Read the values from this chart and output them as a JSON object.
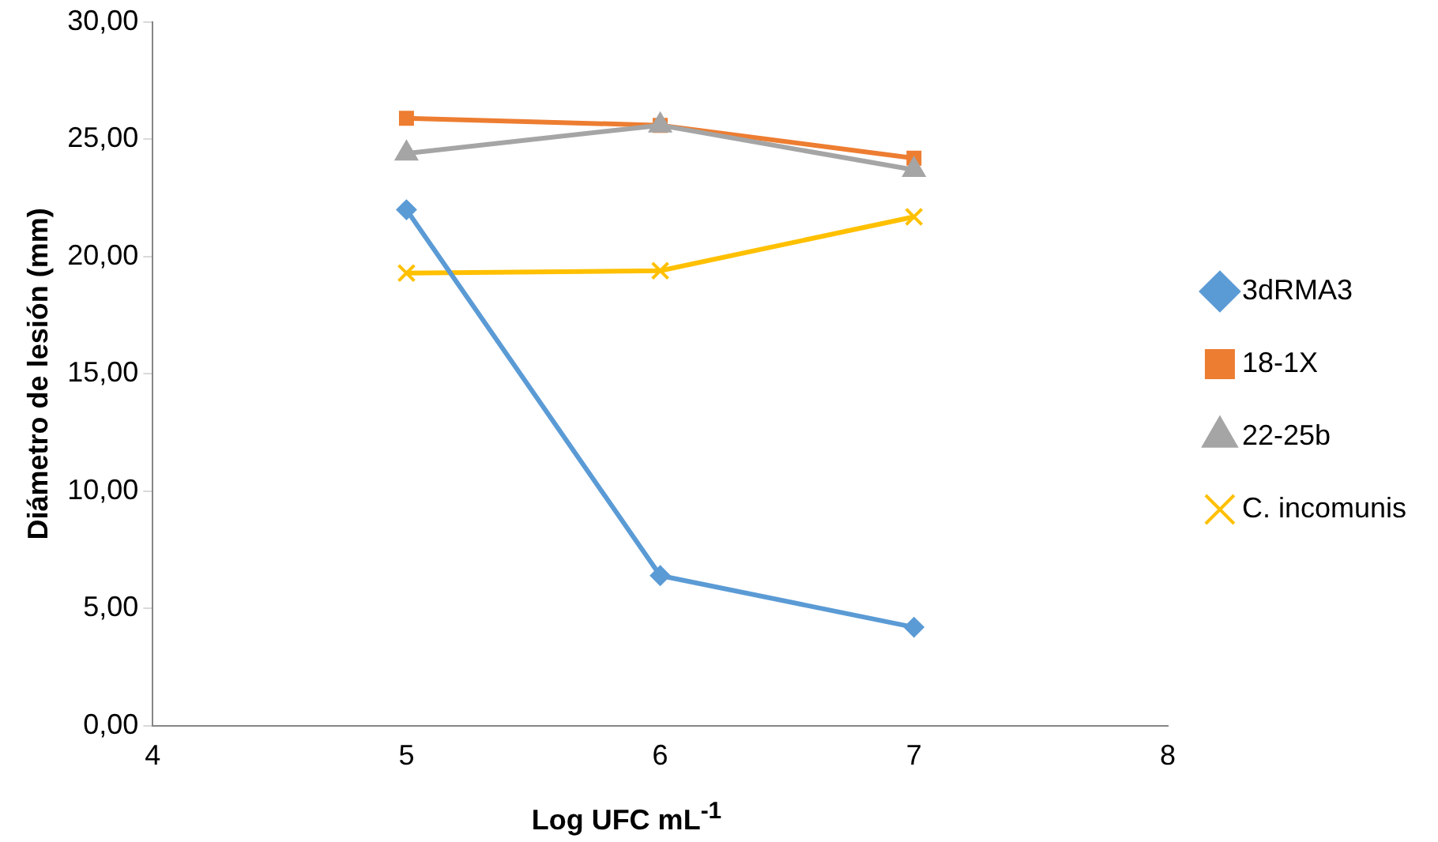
{
  "chart_data": {
    "type": "line",
    "xlabel": "Log UFC mL$^{-1}$",
    "ylabel": "Diámetro de lesión (mm)",
    "x": [
      5,
      6,
      7
    ],
    "series": [
      {
        "name": "3dRMA3",
        "color": "#5b9bd5",
        "marker": "diamond",
        "values": [
          22.0,
          6.4,
          4.2
        ]
      },
      {
        "name": "18-1X",
        "color": "#ed7d31",
        "marker": "square",
        "values": [
          25.9,
          25.6,
          24.2
        ]
      },
      {
        "name": "22-25b",
        "color": "#a5a5a5",
        "marker": "triangle",
        "values": [
          24.4,
          25.6,
          23.7
        ]
      },
      {
        "name": "C. incomunis",
        "color": "#ffc000",
        "marker": "cross",
        "values": [
          19.3,
          19.4,
          21.7
        ]
      }
    ],
    "xlim": [
      4,
      8
    ],
    "xticks": [
      4,
      5,
      6,
      7,
      8
    ],
    "ylim": [
      0,
      30
    ],
    "yticks": [
      {
        "value": 0,
        "label": "0,00"
      },
      {
        "value": 5,
        "label": "5,00"
      },
      {
        "value": 10,
        "label": "10,00"
      },
      {
        "value": 15,
        "label": "15,00"
      },
      {
        "value": 20,
        "label": "20,00"
      },
      {
        "value": 25,
        "label": "25,00"
      },
      {
        "value": 30,
        "label": "30,00"
      }
    ],
    "grid": false,
    "legend": "right",
    "line_style": "solid"
  }
}
